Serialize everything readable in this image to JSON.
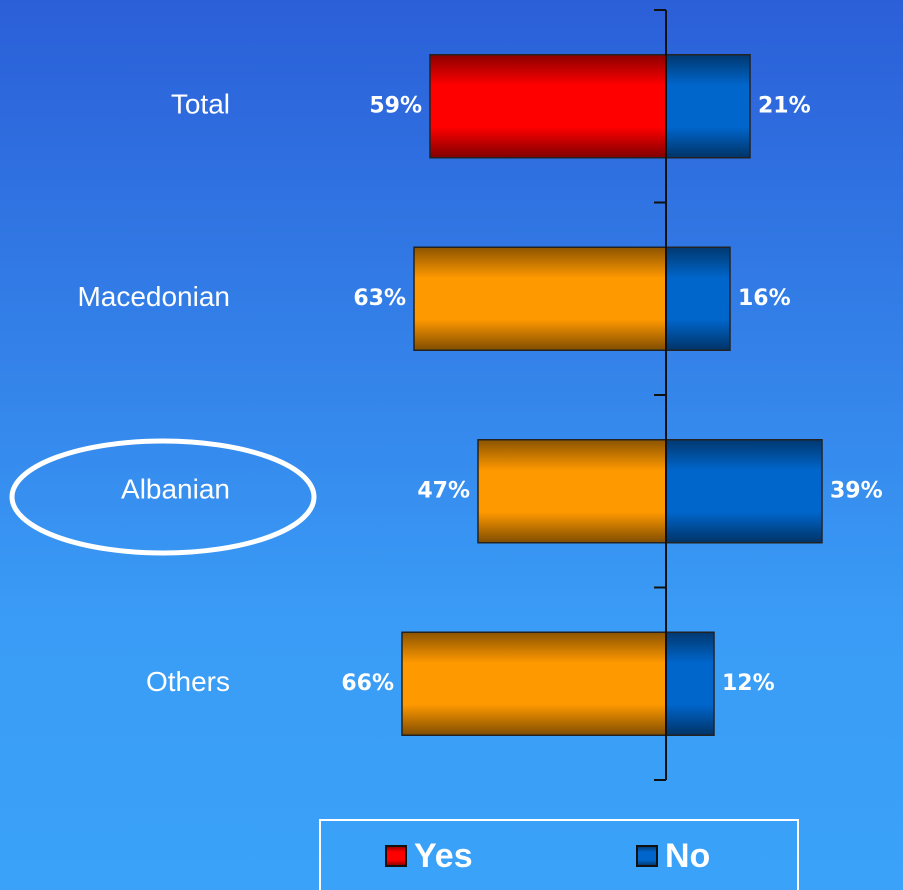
{
  "chart_data": {
    "type": "diverging_bar",
    "categories": [
      "Total",
      "Macedonian",
      "Albanian",
      "Others"
    ],
    "series": [
      {
        "name": "Yes",
        "color": "#ff0000",
        "colors": [
          "#ff0000",
          "#ff9900",
          "#ff9900",
          "#ff9900"
        ],
        "values": [
          59,
          63,
          47,
          66
        ],
        "value_labels": [
          "59%",
          "63%",
          "47%",
          "66%"
        ]
      },
      {
        "name": "No",
        "color": "#0066cc",
        "values": [
          21,
          16,
          39,
          12
        ],
        "value_labels": [
          "21%",
          "16%",
          "39%",
          "12%"
        ]
      }
    ]
  }
}
